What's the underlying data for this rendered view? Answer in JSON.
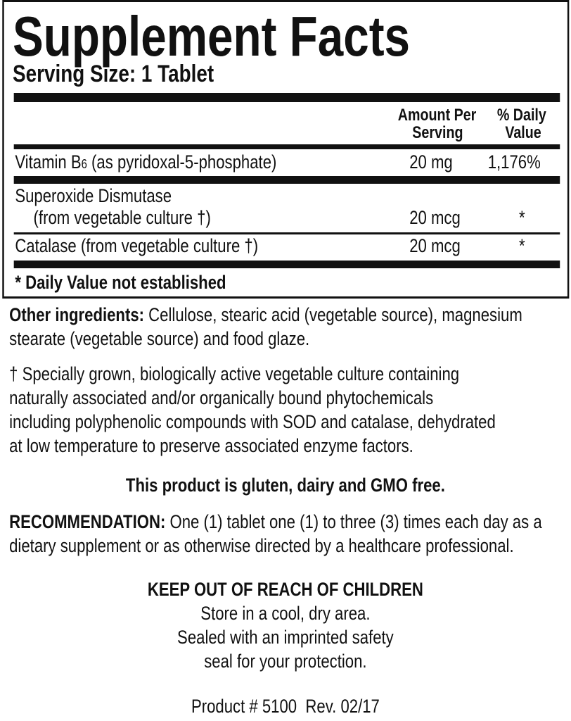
{
  "facts": {
    "title": "Supplement Facts",
    "serving_size": "Serving Size: 1 Tablet",
    "headers": {
      "amount_1": "Amount Per",
      "amount_2": "Serving",
      "dv_1": "% Daily",
      "dv_2": "Value"
    },
    "rows": [
      {
        "name_a": "Vitamin B",
        "name_sub": "6",
        "name_b": " (as pyridoxal-5-phosphate)",
        "amount": "20 mg",
        "dv": "1,176%"
      },
      {
        "name": "Superoxide Dismutase",
        "name_2": "(from vegetable culture †)",
        "amount": "20 mcg",
        "dv": "*"
      },
      {
        "name": "Catalase (from vegetable culture †)",
        "amount": "20 mcg",
        "dv": "*"
      }
    ],
    "footnote": "* Daily Value not established"
  },
  "other": {
    "label": "Other ingredients:",
    "line1": " Cellulose, stearic acid (vegetable source), magnesium",
    "line2": "stearate (vegetable source) and food glaze."
  },
  "dagger_note": [
    "† Specially grown, biologically active vegetable culture containing",
    "naturally associated and/or organically bound phytochemicals",
    "including polyphenolic compounds with SOD and catalase, dehydrated",
    "at low temperature to preserve associated enzyme factors."
  ],
  "free_statement": "This product is gluten, dairy and GMO free.",
  "recommendation": {
    "label": "RECOMMENDATION:",
    "line1": " One (1) tablet one (1) to three (3) times each day as a",
    "line2": "dietary supplement or as otherwise directed by a healthcare professional."
  },
  "warning": {
    "title": "KEEP OUT OF REACH OF CHILDREN",
    "lines": [
      "Store in a cool, dry area.",
      "Sealed with an imprinted safety",
      "seal for your protection."
    ]
  },
  "product": "Product # 5100  Rev. 02/17"
}
